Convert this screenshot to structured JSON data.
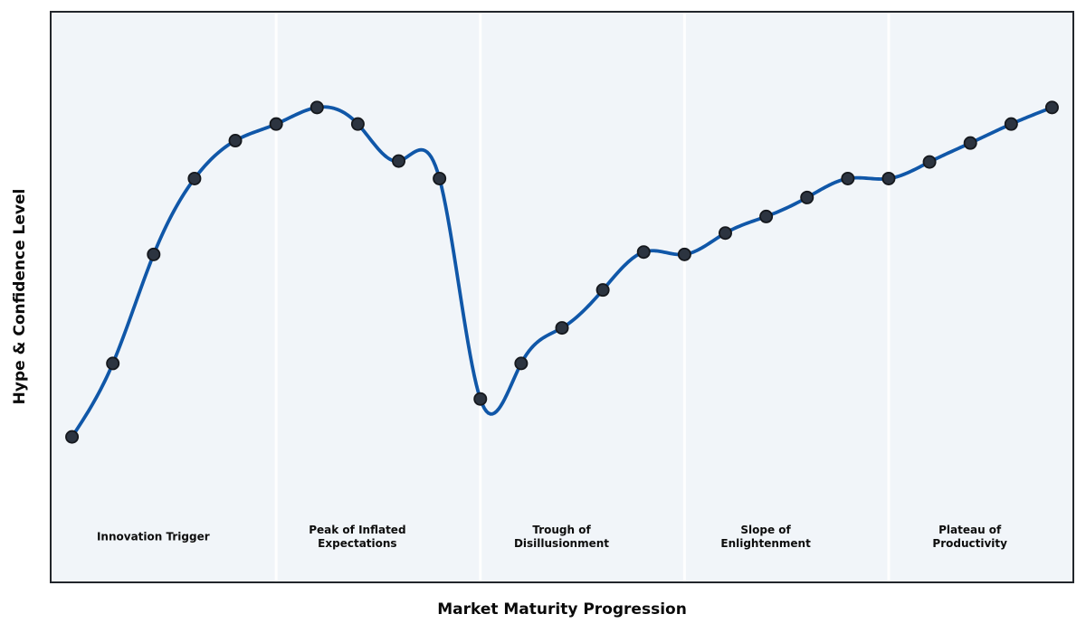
{
  "chart_data": {
    "type": "line",
    "title": "",
    "xlabel": "Market Maturity Progression",
    "ylabel": "Hype & Confidence Level",
    "x": [
      0,
      1,
      2,
      3,
      4,
      5,
      6,
      7,
      8,
      9,
      10,
      11,
      12,
      13,
      14,
      15,
      16,
      17,
      18,
      19,
      20,
      21,
      22,
      23,
      24
    ],
    "values": [
      30.5,
      46,
      69,
      85,
      93,
      96.5,
      100,
      96.5,
      88.7,
      85,
      38.5,
      46,
      53.5,
      61.5,
      69.5,
      69,
      73.5,
      77,
      81,
      85,
      85,
      88.5,
      92.5,
      96.5,
      100
    ],
    "xlim": [
      -0.5,
      24.5
    ],
    "ylim": [
      0,
      120
    ],
    "smoothing": "cubic-spline",
    "grid": false,
    "legend": null,
    "phase_divider_x": [
      5,
      10,
      15,
      20
    ],
    "phase_label_y": 9.4,
    "phases": [
      {
        "label": "Innovation Trigger",
        "x": 2
      },
      {
        "label": "Peak of Inflated\nExpectations",
        "x": 7
      },
      {
        "label": "Trough of\nDisillusionment",
        "x": 12
      },
      {
        "label": "Slope of\nEnlightenment",
        "x": 17
      },
      {
        "label": "Plateau of\nProductivity",
        "x": 22
      }
    ],
    "colors": {
      "line": "#1057a8",
      "marker_fill": "#2c3440",
      "marker_edge": "#15181d",
      "axes_background": "#f1f5f9",
      "figure_background": "#ffffff",
      "spine": "#22262b",
      "divider": "#ffffff",
      "label_text": "#0d0d0d"
    }
  }
}
